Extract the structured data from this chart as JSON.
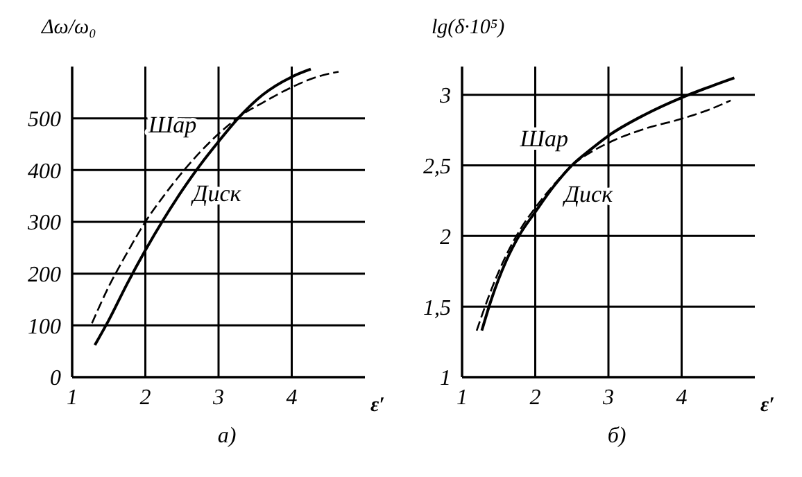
{
  "chart_data": [
    {
      "type": "line",
      "title": "а)",
      "xlabel": "ε′",
      "ylabel": "Δω/ω₀",
      "xlim": [
        1,
        5
      ],
      "xticks": [
        1,
        2,
        3,
        4
      ],
      "ylim": [
        0,
        600
      ],
      "yticks": [
        0,
        100,
        200,
        300,
        400,
        500
      ],
      "grid": true,
      "marker": "none",
      "series": [
        {
          "name": "Диск",
          "color": "#000000",
          "line_style": "solid",
          "x": [
            1.31,
            1.5,
            1.75,
            2,
            2.25,
            2.5,
            2.75,
            3,
            3.3,
            3.6,
            4,
            4.26
          ],
          "values": [
            62,
            110,
            180,
            245,
            305,
            360,
            410,
            455,
            505,
            545,
            580,
            595
          ]
        },
        {
          "name": "Шар",
          "color": "#000000",
          "line_style": "dashed",
          "x": [
            1.27,
            1.5,
            1.75,
            2,
            2.25,
            2.5,
            2.75,
            3,
            3.3,
            3.6,
            4,
            4.3,
            4.64
          ],
          "values": [
            104,
            175,
            240,
            300,
            350,
            395,
            435,
            470,
            505,
            530,
            560,
            578,
            590
          ]
        }
      ]
    },
    {
      "type": "line",
      "title": "б)",
      "xlabel": "ε′",
      "ylabel": "lg(δ·10⁵)",
      "xlim": [
        1,
        5
      ],
      "xticks": [
        1,
        2,
        3,
        4
      ],
      "ylim": [
        1,
        3.2
      ],
      "yticks": [
        1,
        {
          "value": 1.5,
          "label": "1,5"
        },
        2,
        {
          "value": 2.5,
          "label": "2,5"
        },
        3
      ],
      "grid": true,
      "marker": "none",
      "series": [
        {
          "name": "Диск",
          "color": "#000000",
          "line_style": "solid",
          "x": [
            1.27,
            1.4,
            1.6,
            1.8,
            2,
            2.25,
            2.5,
            2.75,
            3,
            3.5,
            4,
            4.4,
            4.72
          ],
          "values": [
            1.33,
            1.55,
            1.82,
            2.02,
            2.17,
            2.35,
            2.5,
            2.61,
            2.71,
            2.86,
            2.98,
            3.06,
            3.12
          ]
        },
        {
          "name": "Шар",
          "color": "#000000",
          "line_style": "dashed",
          "x": [
            1.2,
            1.4,
            1.6,
            1.8,
            2,
            2.25,
            2.5,
            2.75,
            3,
            3.5,
            4,
            4.4,
            4.67
          ],
          "values": [
            1.33,
            1.62,
            1.86,
            2.05,
            2.2,
            2.36,
            2.5,
            2.59,
            2.66,
            2.76,
            2.83,
            2.9,
            2.96
          ]
        }
      ]
    }
  ]
}
